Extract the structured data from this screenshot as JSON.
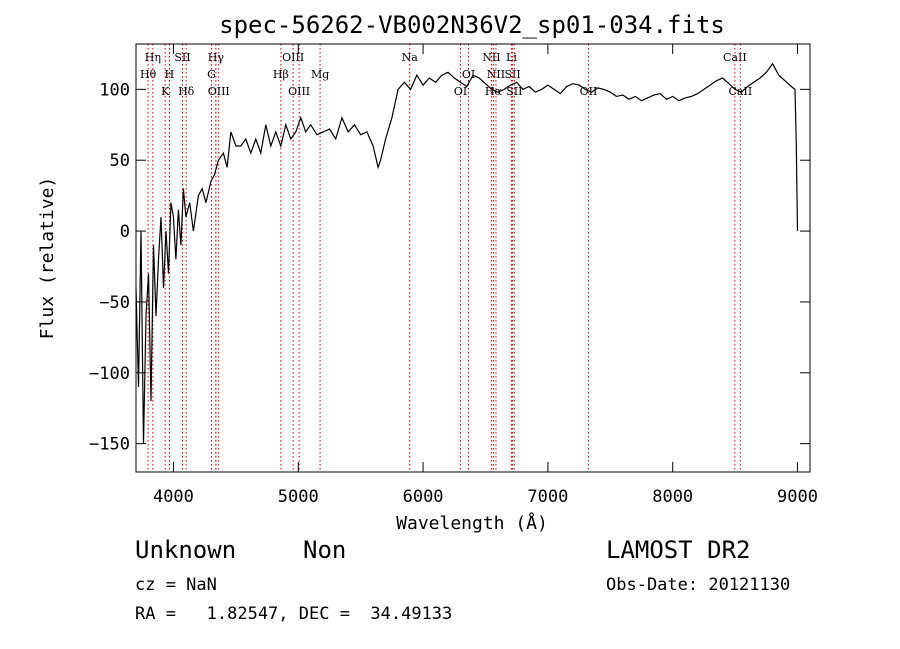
{
  "chart_data": {
    "type": "line",
    "title": "spec-56262-VB002N36V2_sp01-034.fits",
    "xlabel": "Wavelength (Å)",
    "ylabel": "Flux (relative)",
    "xlim": [
      3700,
      9100
    ],
    "ylim": [
      -170,
      132
    ],
    "xticks": [
      4000,
      5000,
      6000,
      7000,
      8000,
      9000
    ],
    "yticks": [
      -150,
      -100,
      -50,
      0,
      50,
      100
    ],
    "grid": false,
    "line_color": "#000000",
    "marker_color": "#cc0000",
    "series": [
      {
        "x": [
          3700,
          3720,
          3740,
          3760,
          3780,
          3800,
          3820,
          3840,
          3860,
          3880,
          3900,
          3920,
          3940,
          3960,
          3980,
          4000,
          4020,
          4040,
          4060,
          4080,
          4100,
          4130,
          4160,
          4200,
          4230,
          4260,
          4300,
          4330,
          4360,
          4400,
          4430,
          4460,
          4500,
          4540,
          4580,
          4620,
          4660,
          4700,
          4740,
          4780,
          4820,
          4860,
          4900,
          4940,
          4980,
          5020,
          5060,
          5100,
          5150,
          5200,
          5250,
          5300,
          5350,
          5400,
          5450,
          5500,
          5550,
          5600,
          5640,
          5660,
          5700,
          5750,
          5800,
          5850,
          5900,
          5950,
          6000,
          6050,
          6100,
          6150,
          6200,
          6250,
          6300,
          6350,
          6400,
          6450,
          6500,
          6550,
          6600,
          6650,
          6700,
          6750,
          6800,
          6850,
          6900,
          6950,
          7000,
          7050,
          7100,
          7150,
          7200,
          7250,
          7300,
          7350,
          7400,
          7450,
          7500,
          7550,
          7600,
          7650,
          7700,
          7750,
          7800,
          7850,
          7900,
          7950,
          8000,
          8050,
          8100,
          8150,
          8200,
          8250,
          8300,
          8350,
          8400,
          8450,
          8500,
          8550,
          8600,
          8650,
          8700,
          8750,
          8800,
          8850,
          8900,
          8950,
          8980,
          8990,
          9000
        ],
        "y": [
          -40,
          -110,
          0,
          -150,
          -60,
          -30,
          -120,
          -10,
          -60,
          -20,
          10,
          -40,
          0,
          -30,
          20,
          10,
          -20,
          15,
          -10,
          30,
          10,
          20,
          0,
          25,
          30,
          20,
          35,
          40,
          50,
          55,
          45,
          70,
          60,
          60,
          65,
          55,
          65,
          55,
          75,
          60,
          70,
          60,
          75,
          65,
          70,
          80,
          70,
          75,
          68,
          70,
          72,
          65,
          80,
          70,
          75,
          68,
          70,
          60,
          45,
          50,
          65,
          80,
          100,
          105,
          100,
          110,
          103,
          108,
          105,
          110,
          112,
          108,
          105,
          102,
          110,
          108,
          104,
          100,
          98,
          100,
          103,
          105,
          100,
          102,
          98,
          100,
          103,
          100,
          97,
          102,
          104,
          103,
          100,
          98,
          101,
          100,
          98,
          95,
          96,
          93,
          95,
          92,
          94,
          96,
          97,
          93,
          95,
          92,
          94,
          95,
          97,
          100,
          103,
          106,
          108,
          104,
          100,
          98,
          102,
          105,
          108,
          112,
          118,
          110,
          106,
          102,
          100,
          60,
          0
        ]
      }
    ],
    "line_markers": [
      {
        "label": "Hη",
        "wavelength": 3835,
        "row": 1
      },
      {
        "label": "Hθ",
        "wavelength": 3797,
        "row": 2
      },
      {
        "label": "H",
        "wavelength": 3968,
        "row": 2
      },
      {
        "label": "K",
        "wavelength": 3934,
        "row": 3
      },
      {
        "label": "SII",
        "wavelength": 4072,
        "row": 1
      },
      {
        "label": "Hδ",
        "wavelength": 4102,
        "row": 3
      },
      {
        "label": "Hγ",
        "wavelength": 4340,
        "row": 1
      },
      {
        "label": "G",
        "wavelength": 4305,
        "row": 2
      },
      {
        "label": "OIII",
        "wavelength": 4363,
        "row": 3
      },
      {
        "label": "OIII",
        "wavelength": 4959,
        "row": 1
      },
      {
        "label": "Hβ",
        "wavelength": 4861,
        "row": 2
      },
      {
        "label": "OIII",
        "wavelength": 5007,
        "row": 3
      },
      {
        "label": "Mg",
        "wavelength": 5175,
        "row": 2
      },
      {
        "label": "Na",
        "wavelength": 5893,
        "row": 1
      },
      {
        "label": "OI",
        "wavelength": 6300,
        "row": 3
      },
      {
        "label": "OI",
        "wavelength": 6364,
        "row": 2
      },
      {
        "label": "NII",
        "wavelength": 6548,
        "row": 1
      },
      {
        "label": "NII",
        "wavelength": 6584,
        "row": 2
      },
      {
        "label": "Hα",
        "wavelength": 6563,
        "row": 3
      },
      {
        "label": "Li",
        "wavelength": 6708,
        "row": 1
      },
      {
        "label": "SII",
        "wavelength": 6717,
        "row": 2
      },
      {
        "label": "SII",
        "wavelength": 6731,
        "row": 3
      },
      {
        "label": "OII",
        "wavelength": 7325,
        "row": 3
      },
      {
        "label": "CaII",
        "wavelength": 8498,
        "row": 1
      },
      {
        "label": "CaII",
        "wavelength": 8542,
        "row": 3
      }
    ]
  },
  "footer": {
    "object_class": "Unknown",
    "object_subclass": "Non",
    "survey": "LAMOST DR2",
    "cz_text": "cz = NaN",
    "obs_date_text": "Obs-Date: 20121130",
    "radec_text": "RA =   1.82547, DEC =  34.49133"
  }
}
